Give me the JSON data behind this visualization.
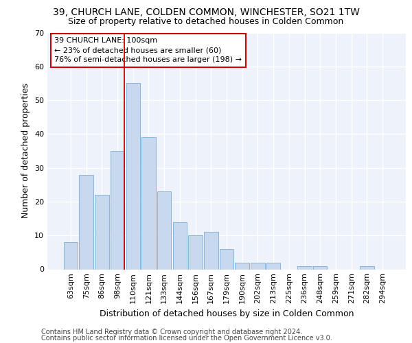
{
  "title_line1": "39, CHURCH LANE, COLDEN COMMON, WINCHESTER, SO21 1TW",
  "title_line2": "Size of property relative to detached houses in Colden Common",
  "xlabel": "Distribution of detached houses by size in Colden Common",
  "ylabel": "Number of detached properties",
  "footer_line1": "Contains HM Land Registry data © Crown copyright and database right 2024.",
  "footer_line2": "Contains public sector information licensed under the Open Government Licence v3.0.",
  "categories": [
    "63sqm",
    "75sqm",
    "86sqm",
    "98sqm",
    "110sqm",
    "121sqm",
    "133sqm",
    "144sqm",
    "156sqm",
    "167sqm",
    "179sqm",
    "190sqm",
    "202sqm",
    "213sqm",
    "225sqm",
    "236sqm",
    "248sqm",
    "259sqm",
    "271sqm",
    "282sqm",
    "294sqm"
  ],
  "values": [
    8,
    28,
    22,
    35,
    55,
    39,
    23,
    14,
    10,
    11,
    6,
    2,
    2,
    2,
    0,
    1,
    1,
    0,
    0,
    1,
    0
  ],
  "bar_color": "#c8d8ee",
  "bar_edge_color": "#7aaed4",
  "ylim": [
    0,
    70
  ],
  "yticks": [
    0,
    10,
    20,
    30,
    40,
    50,
    60,
    70
  ],
  "annotation_box_text": "39 CHURCH LANE: 100sqm\n← 23% of detached houses are smaller (60)\n76% of semi-detached houses are larger (198) →",
  "vline_x_index": 3,
  "vline_color": "#cc0000",
  "annotation_box_color": "#cc0000",
  "background_color": "#eef2fb",
  "grid_color": "#ffffff",
  "title_fontsize": 10,
  "subtitle_fontsize": 9,
  "axis_label_fontsize": 9,
  "tick_fontsize": 8,
  "annotation_fontsize": 8,
  "footer_fontsize": 7
}
